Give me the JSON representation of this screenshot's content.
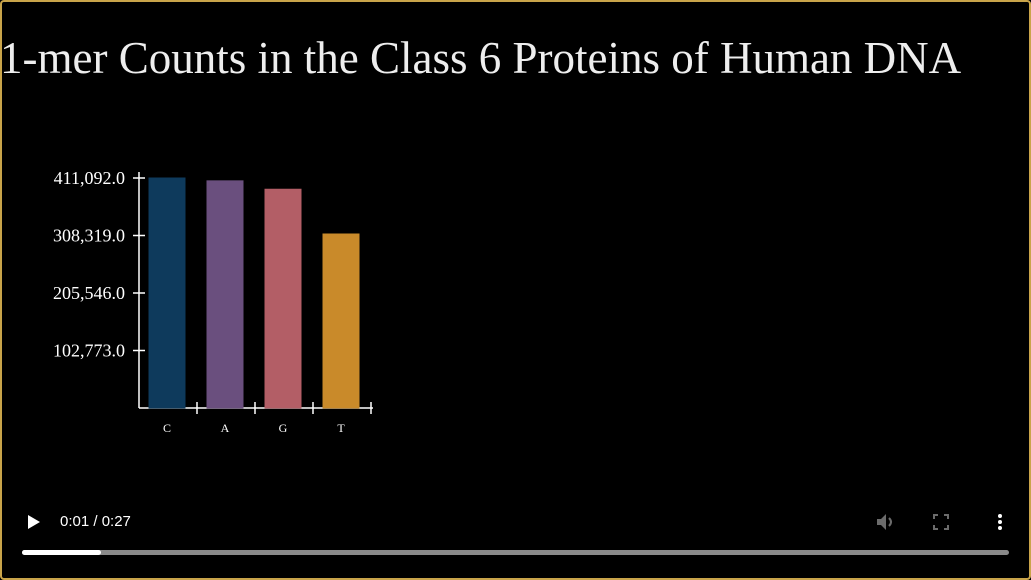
{
  "video": {
    "title": "1-mer Counts in the Class 6 Proteins of Human DNA",
    "current_time": "0:01",
    "duration": "0:27",
    "time_display": "0:01 / 0:27",
    "progress_fraction": 0.08
  },
  "controls": {
    "play_icon": "play-icon",
    "mute_icon": "volume-muted-icon",
    "fullscreen_icon": "fullscreen-icon",
    "more_icon": "more-vertical-icon"
  },
  "colors": {
    "border": "#c9a44a",
    "background": "#000000"
  },
  "chart_data": {
    "type": "bar",
    "title": "1-mer Counts in the Class 6 Proteins of Human DNA",
    "categories": [
      "C",
      "A",
      "G",
      "T"
    ],
    "values": [
      411092,
      406000,
      391000,
      311000
    ],
    "colors": [
      "#0e3a5c",
      "#6a4f7e",
      "#b35e66",
      "#c98a2a"
    ],
    "yticks": [
      102773,
      205546,
      308319,
      411092
    ],
    "ytick_labels": [
      "102,773.0",
      "205,546.0",
      "308,319.0",
      "411,092.0"
    ],
    "ylim": [
      0,
      411092
    ],
    "xlabel": "",
    "ylabel": ""
  }
}
